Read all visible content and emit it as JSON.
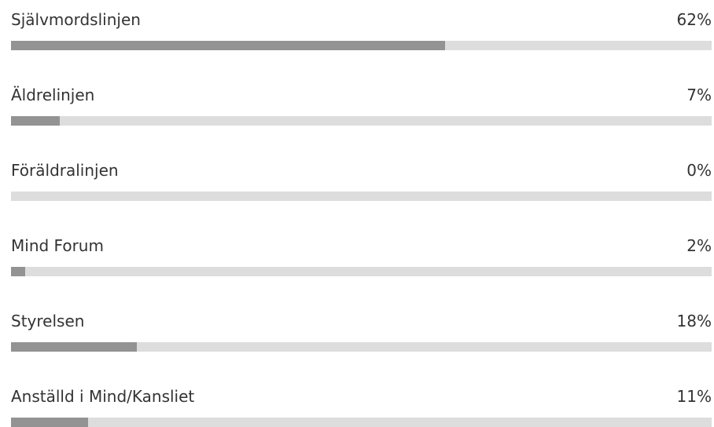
{
  "chart_data": {
    "type": "bar",
    "orientation": "horizontal",
    "categories": [
      "Självmordslinjen",
      "Äldrelinjen",
      "Föräldralinjen",
      "Mind Forum",
      "Styrelsen",
      "Anställd i Mind/Kansliet"
    ],
    "value_labels": [
      "62%",
      "7%",
      "0%",
      "2%",
      "18%",
      "11%"
    ],
    "values": [
      62,
      7,
      0,
      2,
      18,
      11
    ],
    "xlim": [
      0,
      100
    ],
    "grid": false,
    "legend": "none",
    "colors": {
      "fill": "#939393",
      "track": "#dddddd",
      "text": "#333333"
    }
  }
}
